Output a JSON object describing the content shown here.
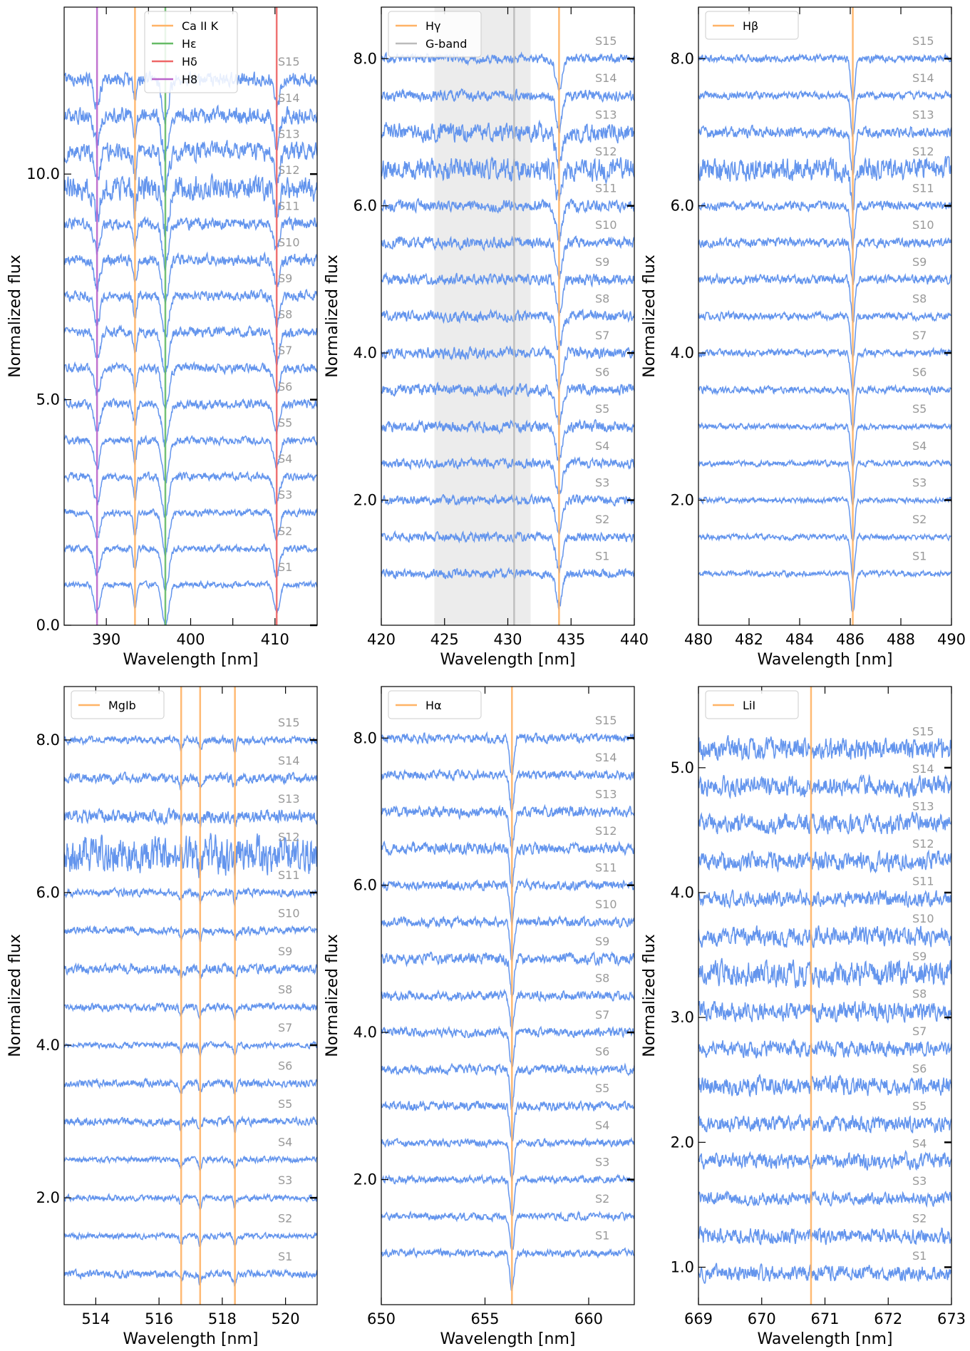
{
  "chart_data": [
    {
      "type": "line",
      "xlabel": "Wavelength [nm]",
      "ylabel": "Normalized flux",
      "xlim": [
        385,
        415
      ],
      "ylim": [
        0,
        13.7
      ],
      "xticks": [
        390,
        395,
        400,
        405,
        410
      ],
      "xtick_labels": [
        "390",
        "",
        "400",
        "",
        "410"
      ],
      "yticks": [
        0,
        5,
        10
      ],
      "ytick_labels": [
        "0.0",
        "5.0",
        "10.0"
      ],
      "legend": "top-center",
      "lines": [
        {
          "name": "Ca II K",
          "x": 393.4,
          "color": "#ffb366"
        },
        {
          "name": "Hε",
          "x": 397.0,
          "color": "#66bb66"
        },
        {
          "name": "Hδ",
          "x": 410.2,
          "color": "#ee6666"
        },
        {
          "name": "H8",
          "x": 388.9,
          "color": "#bb66cc"
        }
      ],
      "shade": null,
      "spectra": {
        "labels": [
          "S1",
          "S2",
          "S3",
          "S4",
          "S5",
          "S6",
          "S7",
          "S8",
          "S9",
          "S10",
          "S11",
          "S12",
          "S13",
          "S14",
          "S15"
        ],
        "offsets": [
          0.9,
          1.7,
          2.5,
          3.3,
          4.1,
          4.9,
          5.7,
          6.5,
          7.3,
          8.1,
          8.9,
          9.7,
          10.5,
          11.3,
          12.1
        ],
        "noise": [
          0.05,
          0.06,
          0.06,
          0.07,
          0.07,
          0.08,
          0.08,
          0.09,
          0.09,
          0.1,
          0.1,
          0.22,
          0.16,
          0.14,
          0.12
        ],
        "absorption": [
          {
            "center": 388.9,
            "depth": 0.6,
            "width": 0.35
          },
          {
            "center": 393.4,
            "depth": 0.5,
            "width": 0.2
          },
          {
            "center": 397.0,
            "depth": 0.9,
            "width": 0.4
          },
          {
            "center": 410.2,
            "depth": 0.6,
            "width": 0.35
          }
        ]
      }
    },
    {
      "type": "line",
      "xlabel": "Wavelength [nm]",
      "ylabel": "Normalized flux",
      "xlim": [
        420,
        440
      ],
      "ylim": [
        0.3,
        8.7
      ],
      "xticks": [
        420,
        425,
        430,
        435,
        440
      ],
      "xtick_labels": [
        "420",
        "425",
        "430",
        "435",
        "440"
      ],
      "yticks": [
        2,
        4,
        6,
        8
      ],
      "ytick_labels": [
        "2.0",
        "4.0",
        "6.0",
        "8.0"
      ],
      "legend": "top-left",
      "lines": [
        {
          "name": "Hγ",
          "x": 434.05,
          "color": "#ffb366"
        },
        {
          "name": "G-band",
          "x": 430.5,
          "color": "#bbbbbb"
        }
      ],
      "shade": [
        424.2,
        431.8
      ],
      "spectra": {
        "labels": [
          "S1",
          "S2",
          "S3",
          "S4",
          "S5",
          "S6",
          "S7",
          "S8",
          "S9",
          "S10",
          "S11",
          "S12",
          "S13",
          "S14",
          "S15"
        ],
        "offsets": [
          1.0,
          1.5,
          2.0,
          2.5,
          3.0,
          3.5,
          4.0,
          4.5,
          5.0,
          5.5,
          6.0,
          6.5,
          7.0,
          7.5,
          8.0
        ],
        "noise": [
          0.05,
          0.05,
          0.05,
          0.05,
          0.06,
          0.06,
          0.06,
          0.06,
          0.06,
          0.06,
          0.06,
          0.12,
          0.1,
          0.06,
          0.05
        ],
        "absorption": [
          {
            "center": 434.05,
            "depth": 0.45,
            "width": 0.25
          }
        ]
      }
    },
    {
      "type": "line",
      "xlabel": "Wavelength [nm]",
      "ylabel": "Normalized flux",
      "xlim": [
        480,
        490
      ],
      "ylim": [
        0.3,
        8.7
      ],
      "xticks": [
        480,
        482,
        484,
        486,
        488,
        490
      ],
      "xtick_labels": [
        "480",
        "482",
        "484",
        "486",
        "488",
        "490"
      ],
      "yticks": [
        2,
        4,
        6,
        8
      ],
      "ytick_labels": [
        "2.0",
        "4.0",
        "6.0",
        "8.0"
      ],
      "legend": "top-left",
      "lines": [
        {
          "name": "Hβ",
          "x": 486.1,
          "color": "#ffb366"
        }
      ],
      "shade": null,
      "spectra": {
        "labels": [
          "S1",
          "S2",
          "S3",
          "S4",
          "S5",
          "S6",
          "S7",
          "S8",
          "S9",
          "S10",
          "S11",
          "S12",
          "S13",
          "S14",
          "S15"
        ],
        "offsets": [
          1.0,
          1.5,
          2.0,
          2.5,
          3.0,
          3.5,
          4.0,
          4.5,
          5.0,
          5.5,
          6.0,
          6.5,
          7.0,
          7.5,
          8.0
        ],
        "noise": [
          0.03,
          0.03,
          0.03,
          0.03,
          0.03,
          0.04,
          0.04,
          0.04,
          0.05,
          0.05,
          0.05,
          0.12,
          0.06,
          0.04,
          0.04
        ],
        "absorption": [
          {
            "center": 486.1,
            "depth": 0.55,
            "width": 0.08
          }
        ]
      }
    },
    {
      "type": "line",
      "xlabel": "Wavelength [nm]",
      "ylabel": "Normalized flux",
      "xlim": [
        513,
        521
      ],
      "ylim": [
        0.6,
        8.7
      ],
      "xticks": [
        514,
        516,
        518,
        520
      ],
      "xtick_labels": [
        "514",
        "516",
        "518",
        "520"
      ],
      "yticks": [
        2,
        4,
        6,
        8
      ],
      "ytick_labels": [
        "2.0",
        "4.0",
        "6.0",
        "8.0"
      ],
      "legend": "top-left",
      "lines": [
        {
          "name": "MgIb",
          "x": 516.7,
          "color": "#ffb366"
        },
        {
          "name": "",
          "x": 517.3,
          "color": "#ffb366"
        },
        {
          "name": "",
          "x": 518.4,
          "color": "#ffb366"
        }
      ],
      "shade": null,
      "spectra": {
        "labels": [
          "S1",
          "S2",
          "S3",
          "S4",
          "S5",
          "S6",
          "S7",
          "S8",
          "S9",
          "S10",
          "S11",
          "S12",
          "S13",
          "S14",
          "S15"
        ],
        "offsets": [
          1.0,
          1.5,
          2.0,
          2.5,
          3.0,
          3.5,
          4.0,
          4.5,
          5.0,
          5.5,
          6.0,
          6.5,
          7.0,
          7.5,
          8.0
        ],
        "noise": [
          0.04,
          0.03,
          0.03,
          0.03,
          0.04,
          0.04,
          0.03,
          0.04,
          0.05,
          0.04,
          0.04,
          0.2,
          0.07,
          0.05,
          0.04
        ],
        "absorption": [
          {
            "center": 516.7,
            "depth": 0.1,
            "width": 0.05
          },
          {
            "center": 517.3,
            "depth": 0.12,
            "width": 0.05
          },
          {
            "center": 518.4,
            "depth": 0.12,
            "width": 0.05
          }
        ]
      }
    },
    {
      "type": "line",
      "xlabel": "Wavelength [nm]",
      "ylabel": "Normalized flux",
      "xlim": [
        650,
        662.2
      ],
      "ylim": [
        0.3,
        8.7
      ],
      "xticks": [
        650,
        655,
        660
      ],
      "xtick_labels": [
        "650",
        "655",
        "660"
      ],
      "yticks": [
        2,
        4,
        6,
        8
      ],
      "ytick_labels": [
        "2.0",
        "4.0",
        "6.0",
        "8.0"
      ],
      "legend": "top-left",
      "lines": [
        {
          "name": "Hα",
          "x": 656.3,
          "color": "#ffb366"
        }
      ],
      "shade": null,
      "spectra": {
        "labels": [
          "S1",
          "S2",
          "S3",
          "S4",
          "S5",
          "S6",
          "S7",
          "S8",
          "S9",
          "S10",
          "S11",
          "S12",
          "S13",
          "S14",
          "S15"
        ],
        "offsets": [
          1.0,
          1.5,
          2.0,
          2.5,
          3.0,
          3.5,
          4.0,
          4.5,
          5.0,
          5.5,
          6.0,
          6.5,
          7.0,
          7.5,
          8.0
        ],
        "noise": [
          0.04,
          0.04,
          0.04,
          0.04,
          0.05,
          0.05,
          0.05,
          0.05,
          0.06,
          0.05,
          0.05,
          0.06,
          0.06,
          0.05,
          0.05
        ],
        "absorption": [
          {
            "center": 656.3,
            "depth": 0.5,
            "width": 0.1
          }
        ]
      }
    },
    {
      "type": "line",
      "xlabel": "Wavelength [nm]",
      "ylabel": "Normalized flux",
      "xlim": [
        669,
        673
      ],
      "ylim": [
        0.7,
        5.65
      ],
      "xticks": [
        669,
        670,
        671,
        672,
        673
      ],
      "xtick_labels": [
        "669",
        "670",
        "671",
        "672",
        "673"
      ],
      "yticks": [
        1,
        2,
        3,
        4,
        5
      ],
      "ytick_labels": [
        "1.0",
        "2.0",
        "3.0",
        "4.0",
        "5.0"
      ],
      "legend": "top-left",
      "lines": [
        {
          "name": "LiI",
          "x": 670.78,
          "color": "#ffb366"
        }
      ],
      "shade": null,
      "spectra": {
        "labels": [
          "S1",
          "S2",
          "S3",
          "S4",
          "S5",
          "S6",
          "S7",
          "S8",
          "S9",
          "S10",
          "S11",
          "S12",
          "S13",
          "S14",
          "S15"
        ],
        "offsets": [
          0.95,
          1.25,
          1.55,
          1.85,
          2.15,
          2.45,
          2.75,
          3.05,
          3.35,
          3.65,
          3.95,
          4.25,
          4.55,
          4.85,
          5.15
        ],
        "noise": [
          0.05,
          0.05,
          0.04,
          0.05,
          0.05,
          0.06,
          0.05,
          0.06,
          0.08,
          0.06,
          0.05,
          0.06,
          0.06,
          0.06,
          0.07
        ],
        "absorption": []
      }
    }
  ],
  "colors": {
    "spectrum": "#6495ed",
    "label": "#999999",
    "shade": "#ececec"
  }
}
